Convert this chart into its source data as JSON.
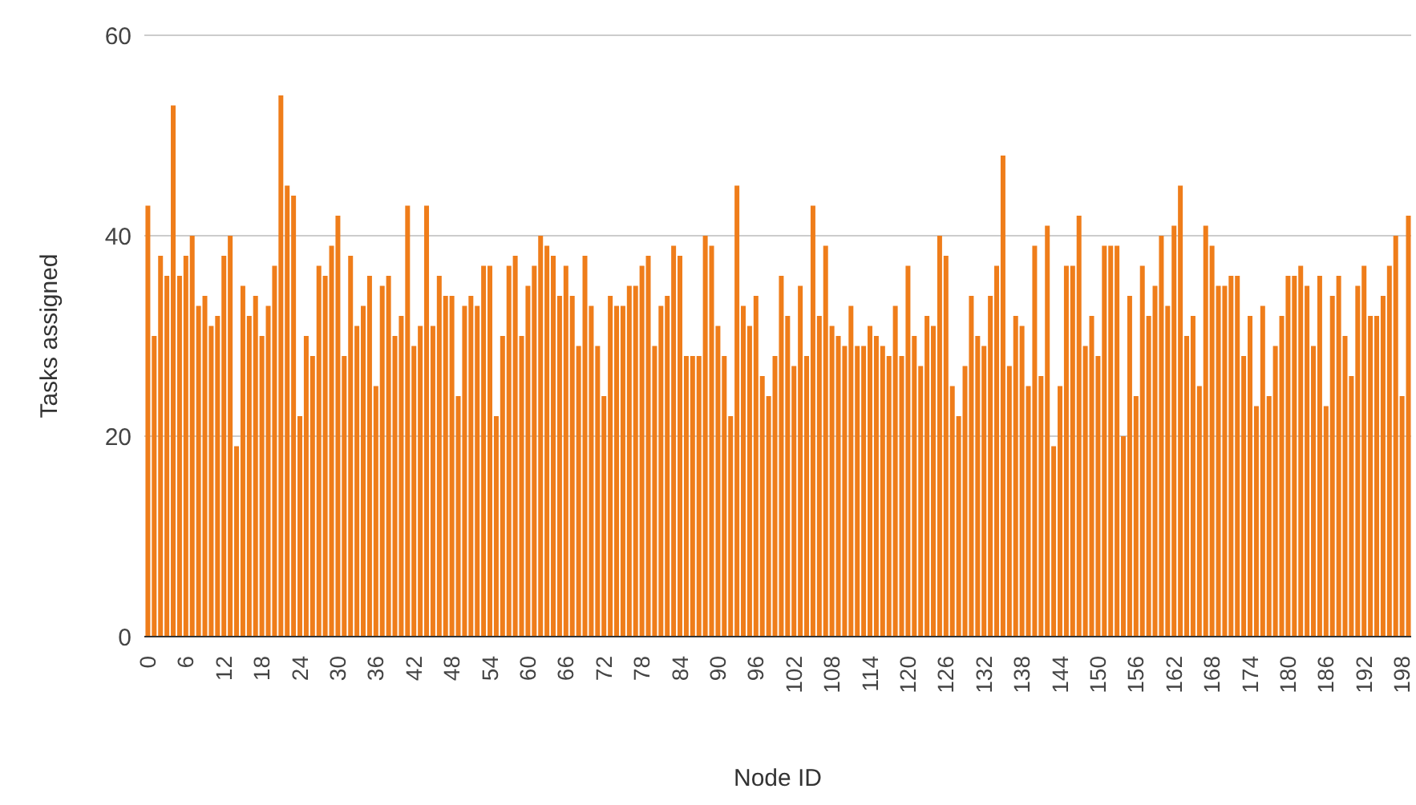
{
  "chart_data": {
    "type": "bar",
    "xlabel": "Node ID",
    "ylabel": "Tasks assigned",
    "color": "#ef7d1a",
    "ylim": [
      0,
      60
    ],
    "yticks": [
      0,
      20,
      40,
      60
    ],
    "grid": "y",
    "legend": false,
    "categories": [
      "0",
      null,
      null,
      null,
      null,
      null,
      "6",
      null,
      null,
      null,
      null,
      null,
      "12",
      null,
      null,
      null,
      null,
      null,
      "18",
      null,
      null,
      null,
      null,
      null,
      "24",
      null,
      null,
      null,
      null,
      null,
      "30",
      null,
      null,
      null,
      null,
      null,
      "36",
      null,
      null,
      null,
      null,
      null,
      "42",
      null,
      null,
      null,
      null,
      null,
      "48",
      null,
      null,
      null,
      null,
      null,
      "54",
      null,
      null,
      null,
      null,
      null,
      "60",
      null,
      null,
      null,
      null,
      null,
      "66",
      null,
      null,
      null,
      null,
      null,
      "72",
      null,
      null,
      null,
      null,
      null,
      "78",
      null,
      null,
      null,
      null,
      null,
      "84",
      null,
      null,
      null,
      null,
      null,
      "90",
      null,
      null,
      null,
      null,
      null,
      "96",
      null,
      null,
      null,
      null,
      null,
      "102",
      null,
      null,
      null,
      null,
      null,
      "108",
      null,
      null,
      null,
      null,
      null,
      "114",
      null,
      null,
      null,
      null,
      null,
      "120",
      null,
      null,
      null,
      null,
      null,
      "126",
      null,
      null,
      null,
      null,
      null,
      "132",
      null,
      null,
      null,
      null,
      null,
      "138",
      null,
      null,
      null,
      null,
      null,
      "144",
      null,
      null,
      null,
      null,
      null,
      "150",
      null,
      null,
      null,
      null,
      null,
      "156",
      null,
      null,
      null,
      null,
      null,
      "162",
      null,
      null,
      null,
      null,
      null,
      "168",
      null,
      null,
      null,
      null,
      null,
      "174",
      null,
      null,
      null,
      null,
      null,
      "180",
      null,
      null,
      null,
      null,
      null,
      "186",
      null,
      null,
      null,
      null,
      null,
      "192",
      null,
      null,
      null,
      null,
      null,
      "198",
      null
    ],
    "values": [
      43,
      30,
      38,
      36,
      53,
      36,
      38,
      40,
      33,
      34,
      31,
      32,
      38,
      40,
      19,
      35,
      32,
      34,
      30,
      33,
      37,
      54,
      45,
      44,
      22,
      30,
      28,
      37,
      36,
      39,
      42,
      28,
      38,
      31,
      33,
      36,
      25,
      35,
      36,
      30,
      32,
      43,
      29,
      31,
      43,
      31,
      36,
      34,
      34,
      24,
      33,
      34,
      33,
      37,
      37,
      22,
      30,
      37,
      38,
      30,
      35,
      37,
      40,
      39,
      38,
      34,
      37,
      34,
      29,
      38,
      33,
      29,
      24,
      34,
      33,
      33,
      35,
      35,
      37,
      38,
      29,
      33,
      34,
      39,
      38,
      28,
      28,
      28,
      40,
      39,
      31,
      28,
      22,
      45,
      33,
      31,
      34,
      26,
      24,
      28,
      36,
      32,
      27,
      35,
      28,
      43,
      32,
      39,
      31,
      30,
      29,
      33,
      29,
      29,
      31,
      30,
      29,
      28,
      33,
      28,
      37,
      30,
      27,
      32,
      31,
      40,
      38,
      25,
      22,
      27,
      34,
      30,
      29,
      34,
      37,
      48,
      27,
      32,
      31,
      25,
      39,
      26,
      41,
      19,
      25,
      37,
      37,
      42,
      29,
      32,
      28,
      39,
      39,
      39,
      20,
      34,
      24,
      37,
      32,
      35,
      40,
      33,
      41,
      45,
      30,
      32,
      25,
      41,
      39,
      35,
      35,
      36,
      36,
      28,
      32,
      23,
      33,
      24,
      29,
      32,
      36,
      36,
      37,
      35,
      29,
      36,
      23,
      34,
      36,
      30,
      26,
      35,
      37,
      32,
      32,
      34,
      37,
      40,
      24,
      42
    ]
  }
}
